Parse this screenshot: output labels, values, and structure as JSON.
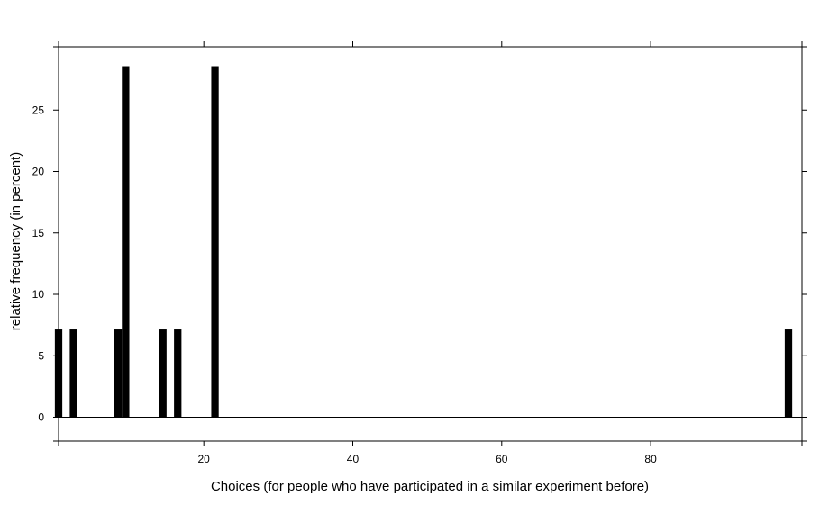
{
  "chart_data": {
    "type": "bar",
    "title": "",
    "xlabel": "Choices (for people who have participated in a similar experiment before)",
    "ylabel": "relative frequency (in percent)",
    "xlim": [
      0,
      100
    ],
    "ylim": [
      -2,
      30
    ],
    "x_ticks": [
      20,
      40,
      60,
      80
    ],
    "y_ticks": [
      0,
      5,
      10,
      15,
      20,
      25
    ],
    "grid": false,
    "legend": "none",
    "bar_width": 1,
    "bars": [
      {
        "x": 0.5,
        "value": 7.14
      },
      {
        "x": 2.5,
        "value": 7.14
      },
      {
        "x": 8.5,
        "value": 7.14
      },
      {
        "x": 9.5,
        "value": 28.57
      },
      {
        "x": 14.5,
        "value": 7.14
      },
      {
        "x": 16.5,
        "value": 7.14
      },
      {
        "x": 21.5,
        "value": 28.57
      },
      {
        "x": 98.5,
        "value": 7.14
      }
    ],
    "bar_color": "#000000"
  }
}
